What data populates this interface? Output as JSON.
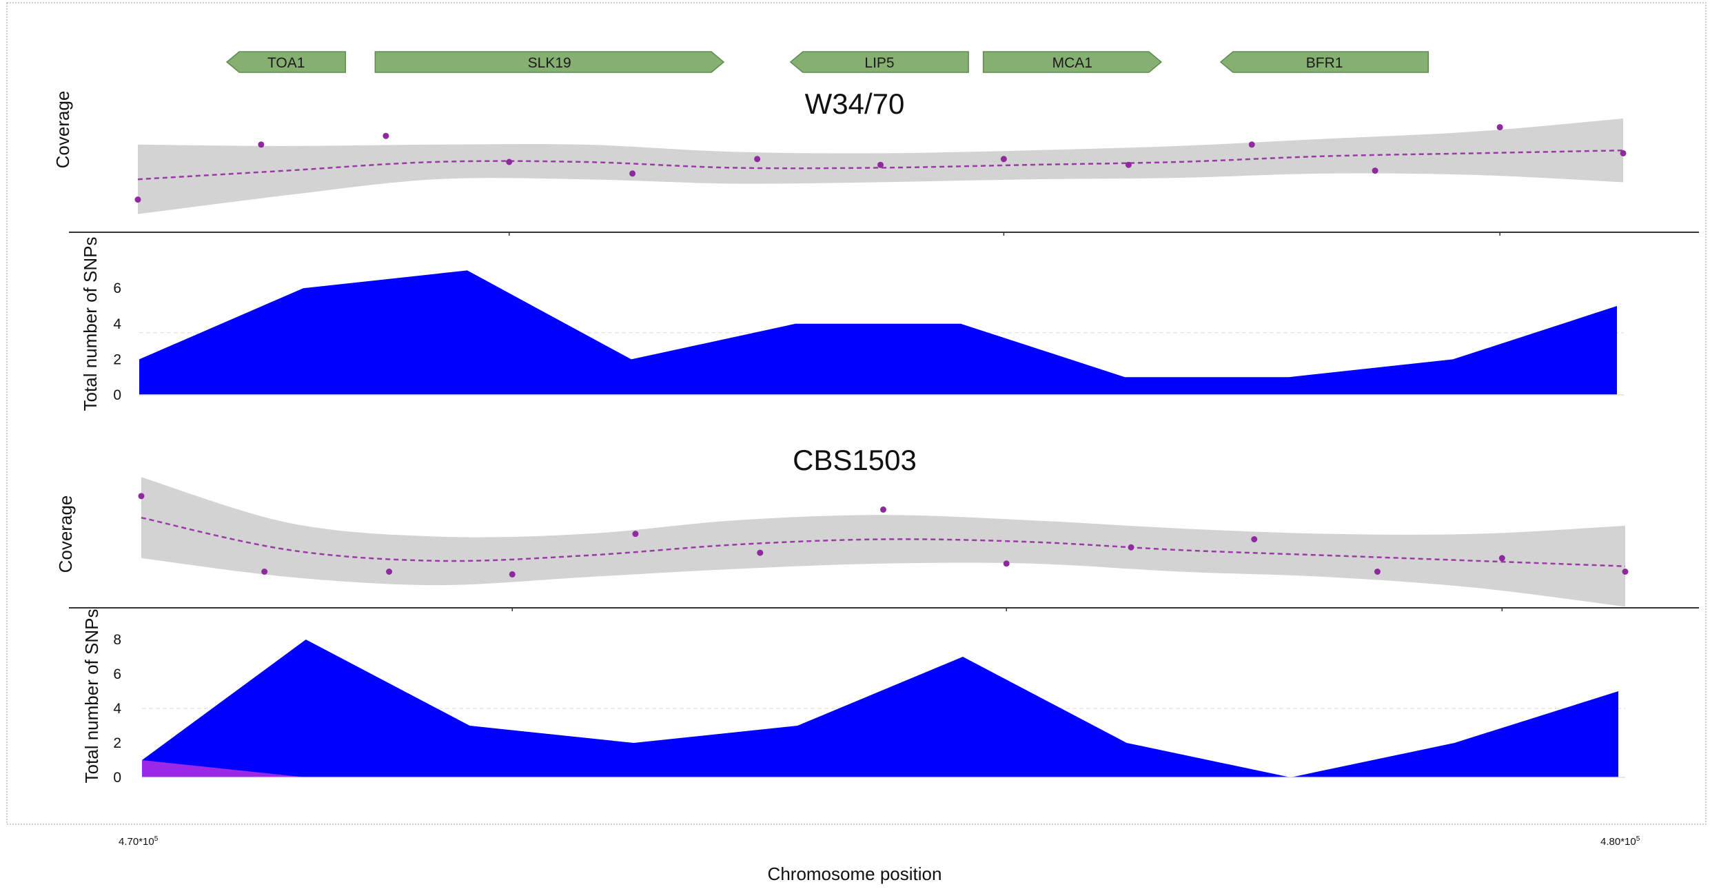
{
  "genes": [
    {
      "name": "TOA1",
      "strand": "-",
      "start": 470.6,
      "end": 471.4
    },
    {
      "name": "SLK19",
      "strand": "+",
      "start": 471.6,
      "end": 473.95
    },
    {
      "name": "LIP5",
      "strand": "-",
      "start": 474.4,
      "end": 475.6
    },
    {
      "name": "MCA1",
      "strand": "+",
      "start": 475.7,
      "end": 476.9
    },
    {
      "name": "BFR1",
      "strand": "-",
      "start": 477.3,
      "end": 478.7
    }
  ],
  "chart_data": [
    {
      "type": "scatter",
      "title": "W34/70",
      "ylabel": "Coverage",
      "x_axis": {
        "range": [
          470,
          480
        ]
      },
      "series": [
        {
          "x": [
            470,
            470.83,
            471.67,
            472.5,
            473.33,
            474.17,
            475,
            475.83,
            476.67,
            477.5,
            478.33,
            479.17,
            480
          ],
          "y": [
            -1.3,
            0.6,
            0.9,
            0.0,
            -0.4,
            0.1,
            -0.1,
            0.1,
            -0.1,
            0.6,
            -0.3,
            1.2,
            0.3
          ]
        }
      ],
      "trend": {
        "x": [
          470,
          471,
          472,
          473,
          474,
          475,
          476,
          477,
          478,
          479,
          480
        ],
        "y": [
          -0.6,
          -0.3,
          0.0,
          0.0,
          -0.2,
          -0.2,
          -0.1,
          0.0,
          0.2,
          0.3,
          0.4
        ]
      },
      "band_halfwidth": [
        1.2,
        0.85,
        0.6,
        0.6,
        0.55,
        0.5,
        0.5,
        0.55,
        0.6,
        0.75,
        1.1
      ],
      "ylim": [
        -2.5,
        2.5
      ]
    },
    {
      "type": "area",
      "ylabel": "Total number of SNPs",
      "x": [
        470,
        471.11,
        472.22,
        473.33,
        474.44,
        475.56,
        476.67,
        477.78,
        478.89,
        480
      ],
      "series": [
        {
          "values": [
            2,
            6,
            7,
            2,
            4,
            4,
            1,
            1,
            2,
            5
          ],
          "color": "#0000ff"
        }
      ],
      "yticks": [
        0,
        2,
        4,
        6
      ],
      "ylim": [
        0,
        8.2
      ],
      "reference_line": 3.5
    },
    {
      "type": "scatter",
      "title": "CBS1503",
      "ylabel": "Coverage",
      "x_axis": {
        "range": [
          470,
          480
        ]
      },
      "series": [
        {
          "x": [
            470,
            470.83,
            471.67,
            472.5,
            473.33,
            474.17,
            475,
            475.83,
            476.67,
            477.5,
            478.33,
            479.17,
            480
          ],
          "y": [
            1.6,
            -1.2,
            -1.2,
            -1.3,
            0.2,
            -0.5,
            1.1,
            -0.9,
            -0.3,
            0.0,
            -1.2,
            -0.7,
            -1.2
          ]
        }
      ],
      "trend": {
        "x": [
          470,
          471,
          472,
          473,
          474,
          475,
          476,
          477,
          478,
          479,
          480
        ],
        "y": [
          0.8,
          -0.4,
          -0.8,
          -0.6,
          -0.2,
          0.0,
          -0.1,
          -0.4,
          -0.6,
          -0.8,
          -1.0
        ]
      },
      "band_halfwidth": [
        1.5,
        1.0,
        0.9,
        0.8,
        0.9,
        0.9,
        0.8,
        0.8,
        0.8,
        1.0,
        1.5
      ],
      "ylim": [
        -3.0,
        3.0
      ]
    },
    {
      "type": "area",
      "ylabel": "Total number of SNPs",
      "x": [
        470,
        471.11,
        472.22,
        473.33,
        474.44,
        475.56,
        476.67,
        477.78,
        478.89,
        480
      ],
      "series": [
        {
          "values": [
            1,
            8,
            3,
            2,
            3,
            7,
            2,
            0,
            2,
            5
          ],
          "color": "#0000ff"
        },
        {
          "values": [
            1,
            0,
            0,
            0,
            0,
            0,
            0,
            0,
            0,
            0
          ],
          "color": "#9a28e6"
        }
      ],
      "yticks": [
        0,
        2,
        4,
        6,
        8
      ],
      "ylim": [
        0,
        9
      ],
      "reference_line": 4
    }
  ],
  "x_axis": {
    "label": "Chromosome position",
    "tick_labels": [
      "4.70*10",
      "4.80*10"
    ],
    "tick_exponent": "5",
    "range": [
      470,
      480
    ]
  }
}
